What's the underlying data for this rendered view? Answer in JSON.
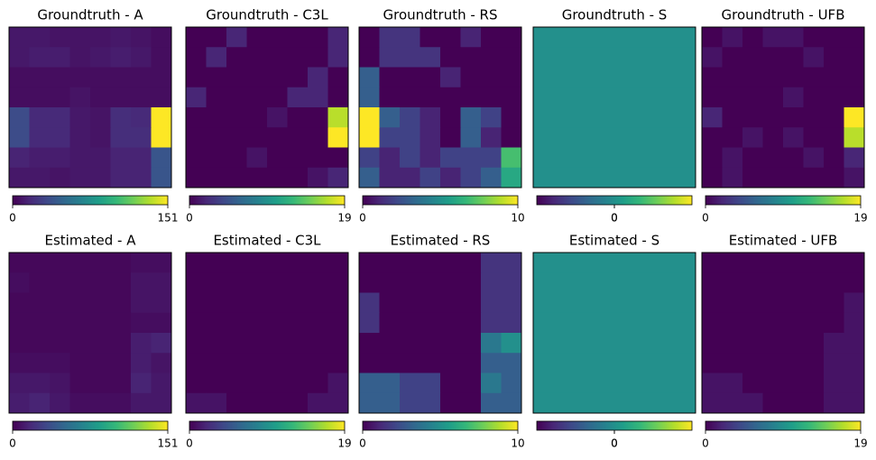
{
  "chart_data": [
    {
      "type": "heatmap",
      "title": "Groundtruth - A",
      "colormap": "viridis",
      "clim": [
        0,
        151
      ],
      "cticks": [
        0,
        151
      ],
      "values": [
        [
          10,
          10,
          8,
          8,
          8,
          10,
          8,
          5
        ],
        [
          10,
          12,
          12,
          8,
          10,
          12,
          10,
          5
        ],
        [
          5,
          5,
          5,
          5,
          5,
          5,
          5,
          5
        ],
        [
          5,
          5,
          5,
          8,
          5,
          5,
          5,
          5
        ],
        [
          35,
          18,
          18,
          10,
          8,
          20,
          18,
          151
        ],
        [
          35,
          18,
          18,
          10,
          8,
          20,
          20,
          151
        ],
        [
          15,
          12,
          12,
          10,
          10,
          15,
          15,
          40
        ],
        [
          10,
          10,
          8,
          10,
          10,
          15,
          15,
          40
        ]
      ]
    },
    {
      "type": "heatmap",
      "title": "Groundtruth - C3L",
      "colormap": "viridis",
      "clim": [
        0,
        19
      ],
      "cticks": [
        0,
        19
      ],
      "values": [
        [
          0,
          0,
          2,
          0,
          0,
          0,
          0,
          2
        ],
        [
          0,
          2,
          0,
          0,
          0,
          0,
          0,
          2
        ],
        [
          0,
          0,
          0,
          0,
          0,
          0,
          2,
          0
        ],
        [
          2,
          0,
          0,
          0,
          0,
          2,
          2,
          0
        ],
        [
          0,
          0,
          0,
          0,
          1,
          0,
          0,
          17
        ],
        [
          0,
          0,
          0,
          0,
          0,
          0,
          0,
          19
        ],
        [
          0,
          0,
          0,
          1,
          0,
          0,
          0,
          0
        ],
        [
          0,
          0,
          0,
          0,
          0,
          0,
          1,
          2
        ]
      ]
    },
    {
      "type": "heatmap",
      "title": "Groundtruth - RS",
      "colormap": "viridis",
      "clim": [
        0,
        10
      ],
      "cticks": [
        0,
        10
      ],
      "values": [
        [
          0,
          1.5,
          1.5,
          0,
          0,
          1,
          0,
          0
        ],
        [
          0,
          1.5,
          1.5,
          1.5,
          0,
          0,
          0,
          0
        ],
        [
          3,
          0,
          0,
          0,
          1,
          0,
          0,
          0
        ],
        [
          3,
          0,
          0,
          0,
          0,
          0,
          0,
          0
        ],
        [
          10,
          3,
          2,
          1,
          0,
          3,
          2,
          0
        ],
        [
          10,
          2,
          2,
          1,
          0,
          3,
          1,
          0
        ],
        [
          2,
          1,
          2,
          1,
          2,
          2,
          2,
          7
        ],
        [
          3,
          1,
          1,
          2,
          1,
          2,
          3,
          6
        ]
      ]
    },
    {
      "type": "heatmap",
      "title": "Groundtruth - S",
      "colormap": "viridis",
      "clim": [
        -0.1,
        0.1
      ],
      "cticks": [
        0,
        0
      ],
      "values": [
        [
          0,
          0,
          0,
          0,
          0,
          0,
          0,
          0
        ],
        [
          0,
          0,
          0,
          0,
          0,
          0,
          0,
          0
        ],
        [
          0,
          0,
          0,
          0,
          0,
          0,
          0,
          0
        ],
        [
          0,
          0,
          0,
          0,
          0,
          0,
          0,
          0
        ],
        [
          0,
          0,
          0,
          0,
          0,
          0,
          0,
          0
        ],
        [
          0,
          0,
          0,
          0,
          0,
          0,
          0,
          0
        ],
        [
          0,
          0,
          0,
          0,
          0,
          0,
          0,
          0
        ],
        [
          0,
          0,
          0,
          0,
          0,
          0,
          0,
          0
        ]
      ]
    },
    {
      "type": "heatmap",
      "title": "Groundtruth - UFB",
      "colormap": "viridis",
      "clim": [
        0,
        19
      ],
      "cticks": [
        0,
        19
      ],
      "values": [
        [
          0,
          1,
          0,
          1,
          1,
          0,
          0,
          0
        ],
        [
          1,
          0,
          0,
          0,
          0,
          1,
          0,
          0
        ],
        [
          0,
          0,
          0,
          0,
          0,
          0,
          0,
          0
        ],
        [
          0,
          0,
          0,
          0,
          1,
          0,
          0,
          0
        ],
        [
          2,
          0,
          0,
          0,
          0,
          0,
          0,
          19
        ],
        [
          0,
          0,
          1,
          0,
          1,
          0,
          0,
          17
        ],
        [
          0,
          1,
          0,
          0,
          0,
          1,
          0,
          2
        ],
        [
          0,
          1,
          0,
          0,
          0,
          0,
          0,
          1
        ]
      ]
    },
    {
      "type": "heatmap",
      "title": "Estimated - A",
      "colormap": "viridis",
      "clim": [
        0,
        151
      ],
      "cticks": [
        0,
        151
      ],
      "values": [
        [
          3,
          3,
          3,
          3,
          3,
          3,
          5,
          5
        ],
        [
          5,
          3,
          3,
          3,
          3,
          3,
          8,
          8
        ],
        [
          3,
          3,
          3,
          3,
          3,
          3,
          8,
          8
        ],
        [
          3,
          3,
          3,
          3,
          3,
          3,
          5,
          5
        ],
        [
          3,
          3,
          3,
          3,
          3,
          3,
          12,
          15
        ],
        [
          5,
          5,
          5,
          3,
          3,
          3,
          12,
          8
        ],
        [
          10,
          10,
          8,
          3,
          3,
          3,
          15,
          10
        ],
        [
          12,
          15,
          10,
          5,
          5,
          5,
          10,
          10
        ]
      ]
    },
    {
      "type": "heatmap",
      "title": "Estimated - C3L",
      "colormap": "viridis",
      "clim": [
        0,
        19
      ],
      "cticks": [
        0,
        19
      ],
      "values": [
        [
          0,
          0,
          0,
          0,
          0,
          0,
          0,
          0
        ],
        [
          0,
          0,
          0,
          0,
          0,
          0,
          0,
          0
        ],
        [
          0,
          0,
          0,
          0,
          0,
          0,
          0,
          0
        ],
        [
          0,
          0,
          0,
          0,
          0,
          0,
          0,
          0
        ],
        [
          0,
          0,
          0,
          0,
          0,
          0,
          0,
          0
        ],
        [
          0,
          0,
          0,
          0,
          0,
          0,
          0,
          0
        ],
        [
          0,
          0,
          0,
          0,
          0,
          0,
          0,
          1
        ],
        [
          1,
          1,
          0,
          0,
          0,
          0,
          1,
          1
        ]
      ]
    },
    {
      "type": "heatmap",
      "title": "Estimated - RS",
      "colormap": "viridis",
      "clim": [
        0,
        10
      ],
      "cticks": [
        0,
        10
      ],
      "values": [
        [
          0,
          0,
          0,
          0,
          0,
          0,
          1.5,
          1.5
        ],
        [
          0,
          0,
          0,
          0,
          0,
          0,
          1.5,
          1.5
        ],
        [
          1.5,
          0,
          0,
          0,
          0,
          0,
          1.5,
          1.5
        ],
        [
          1.5,
          0,
          0,
          0,
          0,
          0,
          1.5,
          1.5
        ],
        [
          0,
          0,
          0,
          0,
          0,
          0,
          4,
          5
        ],
        [
          0,
          0,
          0,
          0,
          0,
          0,
          3,
          3
        ],
        [
          3,
          3,
          2,
          2,
          0,
          0,
          4,
          3
        ],
        [
          3,
          3,
          2,
          2,
          0,
          0,
          3,
          3
        ]
      ]
    },
    {
      "type": "heatmap",
      "title": "Estimated - S",
      "colormap": "viridis",
      "clim": [
        -0.1,
        0.1
      ],
      "cticks": [
        0,
        0
      ],
      "values": [
        [
          0,
          0,
          0,
          0,
          0,
          0,
          0,
          0
        ],
        [
          0,
          0,
          0,
          0,
          0,
          0,
          0,
          0
        ],
        [
          0,
          0,
          0,
          0,
          0,
          0,
          0,
          0
        ],
        [
          0,
          0,
          0,
          0,
          0,
          0,
          0,
          0
        ],
        [
          0,
          0,
          0,
          0,
          0,
          0,
          0,
          0
        ],
        [
          0,
          0,
          0,
          0,
          0,
          0,
          0,
          0
        ],
        [
          0,
          0,
          0,
          0,
          0,
          0,
          0,
          0
        ],
        [
          0,
          0,
          0,
          0,
          0,
          0,
          0,
          0
        ]
      ]
    },
    {
      "type": "heatmap",
      "title": "Estimated - UFB",
      "colormap": "viridis",
      "clim": [
        0,
        19
      ],
      "cticks": [
        0,
        19
      ],
      "values": [
        [
          0,
          0,
          0,
          0,
          0,
          0,
          0,
          0
        ],
        [
          0,
          0,
          0,
          0,
          0,
          0,
          0,
          0
        ],
        [
          0,
          0,
          0,
          0,
          0,
          0,
          0,
          1
        ],
        [
          0,
          0,
          0,
          0,
          0,
          0,
          0,
          1
        ],
        [
          0,
          0,
          0,
          0,
          0,
          0,
          1,
          1
        ],
        [
          0,
          0,
          0,
          0,
          0,
          0,
          1,
          1
        ],
        [
          1,
          1,
          0,
          0,
          0,
          0,
          1,
          1
        ],
        [
          1,
          1,
          1,
          0,
          0,
          0,
          1,
          1
        ]
      ]
    }
  ]
}
